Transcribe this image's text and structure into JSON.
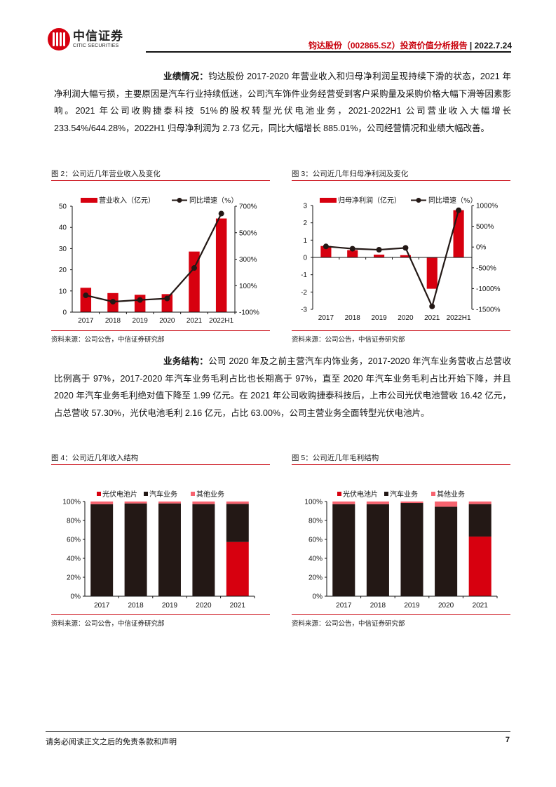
{
  "header": {
    "logo_cn": "中信证券",
    "logo_en": "CITIC SECURITIES",
    "report_title": "钧达股份（002865.SZ）投资价值分析报告",
    "separator": " | ",
    "date": "2022.7.24"
  },
  "paragraphs": [
    {
      "lead": "业绩情况：",
      "text": "钧达股份 2017-2020 年营业收入和归母净利润呈现持续下滑的状态，2021 年净利润大幅亏损，主要原因是汽车行业持续低迷，公司汽车饰件业务经营受到客户采购量及采购价格大幅下滑等因素影响。2021 年公司收购捷泰科技 51%的股权转型光伏电池业务，2021-2022H1 公司营业收入大幅增长 233.54%/644.28%，2022H1 归母净利润为 2.73 亿元，同比大幅增长 885.01%，公司经营情况和业绩大幅改善。"
    },
    {
      "lead": "业务结构：",
      "text": "公司 2020 年及之前主营汽车内饰业务，2017-2020 年汽车业务营收占总营收比例高于 97%，2017-2020 年汽车业务毛利占比也长期高于 97%，直至 2020 年汽车业务毛利占比开始下降，并且 2020 年汽车业务毛利绝对值下降至 1.99 亿元。在 2021 年公司收购捷泰科技后，上市公司光伏电池营收 16.42 亿元，占总营收 57.30%，光伏电池毛利 2.16 亿元，占比 63.00%，公司主营业务全面转型光伏电池片。"
    }
  ],
  "figures": [
    {
      "title": "图 2：公司近几年营业收入及变化",
      "source": "资料来源：公司公告，中信证券研究部"
    },
    {
      "title": "图 3：公司近几年归母净利润及变化",
      "source": "资料来源：公司公告，中信证券研究部"
    },
    {
      "title": "图 4：公司近几年收入结构",
      "source": "资料来源：公司公告，中信证券研究部"
    },
    {
      "title": "图 5：公司近几年毛利结构",
      "source": "资料来源：公司公告，中信证券研究部"
    }
  ],
  "colors": {
    "brand_red": "#c8000b",
    "bar_red": "#d7000f",
    "bar_black": "#231815",
    "bar_pink": "#f7636f",
    "line_black": "#231815"
  },
  "chart_data": [
    {
      "id": "fig2",
      "type": "bar+line",
      "title": "图 2：公司近几年营业收入及变化",
      "categories": [
        "2017",
        "2018",
        "2019",
        "2020",
        "2021",
        "2022H1"
      ],
      "series": [
        {
          "name": "营业收入（亿元）",
          "type": "bar",
          "axis": "left",
          "values": [
            11.5,
            9.0,
            8.2,
            8.5,
            28.6,
            44.2
          ]
        },
        {
          "name": "同比增速（%）",
          "type": "line",
          "axis": "right",
          "values": [
            27,
            -21,
            -8,
            3,
            233.54,
            644.28
          ]
        }
      ],
      "left_axis": {
        "ylim": [
          0,
          50
        ],
        "ticks": [
          "0",
          "10",
          "20",
          "30",
          "40",
          "50"
        ]
      },
      "right_axis": {
        "ylim": [
          -100,
          700
        ],
        "ticks": [
          "-100%",
          "100%",
          "300%",
          "500%",
          "700%"
        ]
      },
      "legend_position": "top",
      "grid": false
    },
    {
      "id": "fig3",
      "type": "bar+line",
      "title": "图 3：公司近几年归母净利润及变化",
      "categories": [
        "2017",
        "2018",
        "2019",
        "2020",
        "2021",
        "2022H1"
      ],
      "series": [
        {
          "name": "归母净利润（亿元）",
          "type": "bar",
          "axis": "left",
          "values": [
            0.66,
            0.42,
            0.16,
            0.13,
            -1.81,
            2.73
          ]
        },
        {
          "name": "同比增速（%）",
          "type": "line",
          "axis": "right",
          "values": [
            15,
            -40,
            -65,
            -20,
            -1430,
            885.01
          ]
        }
      ],
      "left_axis": {
        "ylim": [
          -3,
          3
        ],
        "ticks": [
          "-3",
          "-2",
          "-1",
          "0",
          "1",
          "2",
          "3"
        ]
      },
      "right_axis": {
        "ylim": [
          -1500,
          1000
        ],
        "ticks": [
          "-1500%",
          "-1000%",
          "-500%",
          "0%",
          "500%",
          "1000%"
        ]
      },
      "legend_position": "top",
      "grid": false
    },
    {
      "id": "fig4",
      "type": "stacked_bar",
      "title": "图 4：公司近几年收入结构",
      "categories": [
        "2017",
        "2018",
        "2019",
        "2020",
        "2021"
      ],
      "series": [
        {
          "name": "光伏电池片",
          "values": [
            0,
            0,
            0,
            0,
            57.3
          ]
        },
        {
          "name": "汽车业务",
          "values": [
            97.2,
            98.0,
            98.0,
            97.3,
            40.2
          ]
        },
        {
          "name": "其他业务",
          "values": [
            2.8,
            2.0,
            2.0,
            2.7,
            2.5
          ]
        }
      ],
      "ylim": [
        0,
        100
      ],
      "yticks": [
        "0%",
        "20%",
        "40%",
        "60%",
        "80%",
        "100%"
      ],
      "legend_position": "top",
      "grid": false
    },
    {
      "id": "fig5",
      "type": "stacked_bar",
      "title": "图 5：公司近几年毛利结构",
      "categories": [
        "2017",
        "2018",
        "2019",
        "2020",
        "2021"
      ],
      "series": [
        {
          "name": "光伏电池片",
          "values": [
            0,
            0,
            0,
            0,
            63.0
          ]
        },
        {
          "name": "汽车业务",
          "values": [
            97.2,
            97.2,
            98.5,
            94.5,
            34.3
          ]
        },
        {
          "name": "其他业务",
          "values": [
            2.8,
            2.8,
            1.5,
            5.5,
            2.7
          ]
        }
      ],
      "ylim": [
        0,
        100
      ],
      "yticks": [
        "0%",
        "20%",
        "40%",
        "60%",
        "80%",
        "100%"
      ],
      "legend_position": "top",
      "grid": false
    }
  ],
  "footer": {
    "disclaimer": "请务必阅读正文之后的免责条款和声明",
    "page": "7"
  }
}
